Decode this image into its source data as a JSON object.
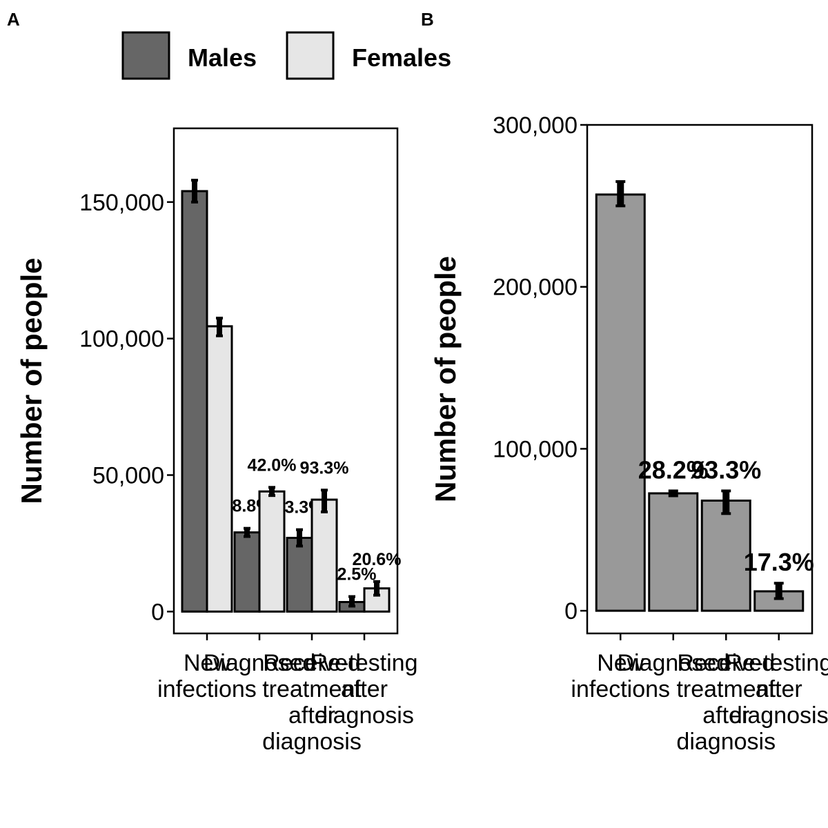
{
  "panels": {
    "a": {
      "letter": "A"
    },
    "b": {
      "letter": "B"
    }
  },
  "legend": {
    "males": {
      "label": "Males",
      "color": "#666666"
    },
    "females": {
      "label": "Females",
      "color": "#e6e6e6"
    }
  },
  "chart_data": [
    {
      "panel": "A",
      "type": "bar",
      "ylabel": "Number of people",
      "xlabel": "",
      "ylim": [
        -8000,
        177000
      ],
      "yticks": [
        0,
        50000,
        100000,
        150000
      ],
      "ytick_labels": [
        "0",
        "50,000",
        "100,000",
        "150,000"
      ],
      "categories": [
        "New\ninfections",
        "Diagnosed",
        "Received\ntreatment\nafter\ndiagnosis",
        "Re-testing\nafter\ndiagnosis"
      ],
      "grid": false,
      "legend_position": "top",
      "series": [
        {
          "name": "Males",
          "color": "#666666",
          "values": [
            154000,
            29000,
            27000,
            3500
          ],
          "err_low": [
            150000,
            27500,
            24000,
            2000
          ],
          "err_high": [
            158000,
            30500,
            30000,
            5500
          ],
          "labels": [
            "",
            "18.8%",
            "93.3%",
            "12.5%"
          ]
        },
        {
          "name": "Females",
          "color": "#e6e6e6",
          "values": [
            104500,
            44000,
            41000,
            8500
          ],
          "err_low": [
            101000,
            42500,
            36500,
            6000
          ],
          "err_high": [
            107500,
            45500,
            44500,
            11000
          ],
          "labels": [
            "",
            "42.0%",
            "93.3%",
            "20.6%"
          ]
        }
      ]
    },
    {
      "panel": "B",
      "type": "bar",
      "ylabel": "Number of people",
      "xlabel": "",
      "ylim": [
        -14000,
        300000
      ],
      "yticks": [
        0,
        100000,
        200000,
        300000
      ],
      "ytick_labels": [
        "0",
        "100,000",
        "200,000",
        "300,000"
      ],
      "categories": [
        "New\ninfections",
        "Diagnosed",
        "Received\ntreatment\nafter\ndiagnosis",
        "Re-testing\nafter\ndiagnosis"
      ],
      "grid": false,
      "series": [
        {
          "name": "",
          "color": "#999999",
          "values": [
            257000,
            72500,
            68000,
            12000
          ],
          "err_low": [
            250000,
            71000,
            60000,
            7500
          ],
          "err_high": [
            265000,
            74000,
            74000,
            17000
          ],
          "labels": [
            "",
            "28.2%",
            "93.3%",
            "17.3%"
          ]
        }
      ]
    }
  ]
}
